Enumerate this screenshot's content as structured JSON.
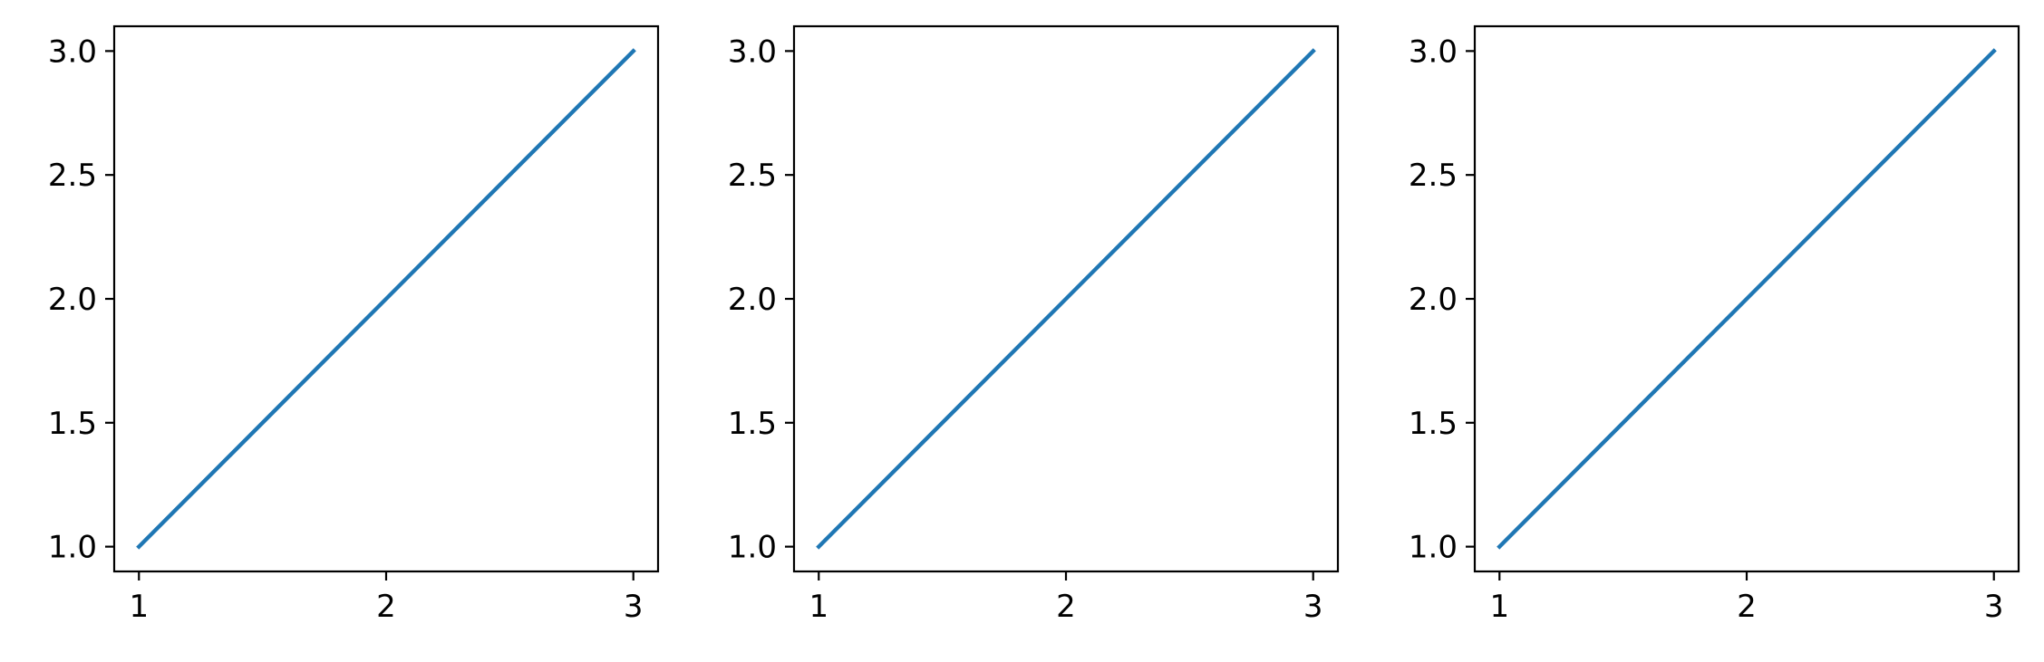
{
  "chart_data": [
    {
      "type": "line",
      "title": "",
      "xlabel": "",
      "ylabel": "",
      "xlim": [
        0.9,
        3.1
      ],
      "ylim": [
        0.9,
        3.1
      ],
      "x_ticks": [
        1,
        2,
        3
      ],
      "x_tick_labels": [
        "1",
        "2",
        "3"
      ],
      "y_ticks": [
        1.0,
        1.5,
        2.0,
        2.5,
        3.0
      ],
      "y_tick_labels": [
        "1.0",
        "1.5",
        "2.0",
        "2.5",
        "3.0"
      ],
      "grid": false,
      "series": [
        {
          "x": [
            1,
            2,
            3
          ],
          "y": [
            1,
            2,
            3
          ],
          "color": "#1f77b4"
        }
      ]
    },
    {
      "type": "line",
      "title": "",
      "xlabel": "",
      "ylabel": "",
      "xlim": [
        0.9,
        3.1
      ],
      "ylim": [
        0.9,
        3.1
      ],
      "x_ticks": [
        1,
        2,
        3
      ],
      "x_tick_labels": [
        "1",
        "2",
        "3"
      ],
      "y_ticks": [
        1.0,
        1.5,
        2.0,
        2.5,
        3.0
      ],
      "y_tick_labels": [
        "1.0",
        "1.5",
        "2.0",
        "2.5",
        "3.0"
      ],
      "grid": false,
      "series": [
        {
          "x": [
            1,
            2,
            3
          ],
          "y": [
            1,
            2,
            3
          ],
          "color": "#1f77b4"
        }
      ]
    },
    {
      "type": "line",
      "title": "",
      "xlabel": "",
      "ylabel": "",
      "xlim": [
        0.9,
        3.1
      ],
      "ylim": [
        0.9,
        3.1
      ],
      "x_ticks": [
        1,
        2,
        3
      ],
      "x_tick_labels": [
        "1",
        "2",
        "3"
      ],
      "y_ticks": [
        1.0,
        1.5,
        2.0,
        2.5,
        3.0
      ],
      "y_tick_labels": [
        "1.0",
        "1.5",
        "2.0",
        "2.5",
        "3.0"
      ],
      "grid": false,
      "series": [
        {
          "x": [
            1,
            2,
            3
          ],
          "y": [
            1,
            2,
            3
          ],
          "color": "#1f77b4"
        }
      ]
    }
  ]
}
